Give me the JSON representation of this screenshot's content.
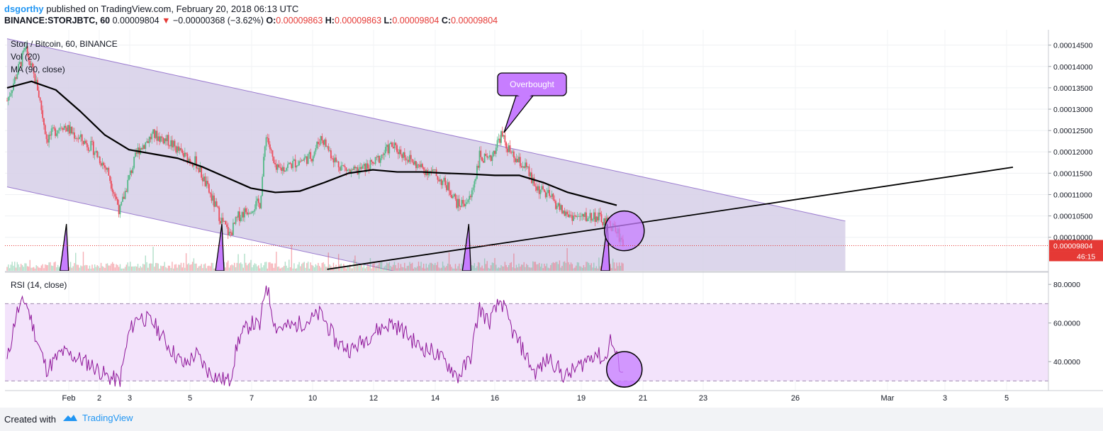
{
  "header": {
    "author": "dsgorthy",
    "published": "published on TradingView.com, February 20, 2018 06:13 UTC",
    "symbol": "BINANCE:STORJBTC, 60",
    "price": "0.00009804",
    "change_arrow": "▼",
    "change": "−0.00000368 (−3.62%)",
    "ohlc": [
      {
        "k": "O:",
        "v": "0.00009863"
      },
      {
        "k": "H:",
        "v": "0.00009863"
      },
      {
        "k": "L:",
        "v": "0.00009804"
      },
      {
        "k": "C:",
        "v": "0.00009804"
      }
    ]
  },
  "legend": {
    "title": "Storj / Bitcoin, 60, BINANCE",
    "vol": "Vol (20)",
    "ma": "MA (90, close)",
    "rsi": "RSI (14, close)"
  },
  "annotation": {
    "label": "Overbought"
  },
  "price_tag": {
    "value": "0.00009804",
    "countdown": "46:15"
  },
  "footer": {
    "created_with": "Created with",
    "brand": "TradingView"
  },
  "colors": {
    "up": "#53b987",
    "down": "#eb4d5c",
    "channel_fill": "#d6cfe8",
    "channel_line": "#9c7dd0",
    "ma": "#000000",
    "rsi_line": "#8e1599",
    "rsi_band": "#f3e3fb",
    "callout": "#c77dff",
    "accent": "#2196f3"
  },
  "chart_data": {
    "type": "candlestick",
    "title": "Storj / Bitcoin, 60, BINANCE",
    "price_axis": {
      "ticks": [
        "0.00014500",
        "0.00014000",
        "0.00013500",
        "0.00013000",
        "0.00012500",
        "0.00012000",
        "0.00011500",
        "0.00011000",
        "0.00010500",
        "0.00010000"
      ],
      "range": [
        9.25e-05,
        0.000148
      ]
    },
    "rsi_axis": {
      "ticks": [
        "80.0000",
        "60.0000",
        "40.0000"
      ],
      "range": [
        25,
        83
      ],
      "band": [
        30,
        70
      ]
    },
    "time_axis": [
      "Feb",
      "2",
      "3",
      "5",
      "7",
      "10",
      "12",
      "14",
      "16",
      "19",
      "21",
      "23",
      "26",
      "Mar",
      "3",
      "5"
    ],
    "price_waypoints": [
      {
        "d": 0.0,
        "p": 0.000132
      },
      {
        "d": 0.3,
        "p": 0.000138
      },
      {
        "d": 0.6,
        "p": 0.000144
      },
      {
        "d": 1.0,
        "p": 0.000135
      },
      {
        "d": 1.3,
        "p": 0.000123
      },
      {
        "d": 1.8,
        "p": 0.0001265
      },
      {
        "d": 2.3,
        "p": 0.0001235
      },
      {
        "d": 2.8,
        "p": 0.000121
      },
      {
        "d": 3.3,
        "p": 0.0001155
      },
      {
        "d": 3.7,
        "p": 0.000106
      },
      {
        "d": 4.0,
        "p": 0.000114
      },
      {
        "d": 4.3,
        "p": 0.0001205
      },
      {
        "d": 4.8,
        "p": 0.000124
      },
      {
        "d": 5.3,
        "p": 0.0001225
      },
      {
        "d": 5.8,
        "p": 0.000119
      },
      {
        "d": 6.2,
        "p": 0.0001175
      },
      {
        "d": 6.6,
        "p": 0.000111
      },
      {
        "d": 7.0,
        "p": 0.0001045
      },
      {
        "d": 7.3,
        "p": 0.0001005
      },
      {
        "d": 7.6,
        "p": 0.000105
      },
      {
        "d": 8.0,
        "p": 0.000107
      },
      {
        "d": 8.3,
        "p": 0.000108
      },
      {
        "d": 8.5,
        "p": 0.0001245
      },
      {
        "d": 8.8,
        "p": 0.0001155
      },
      {
        "d": 9.3,
        "p": 0.000117
      },
      {
        "d": 10.0,
        "p": 0.000119
      },
      {
        "d": 10.3,
        "p": 0.0001235
      },
      {
        "d": 10.8,
        "p": 0.0001175
      },
      {
        "d": 11.3,
        "p": 0.000115
      },
      {
        "d": 12.0,
        "p": 0.000117
      },
      {
        "d": 12.6,
        "p": 0.0001215
      },
      {
        "d": 13.0,
        "p": 0.0001195
      },
      {
        "d": 13.5,
        "p": 0.0001165
      },
      {
        "d": 14.0,
        "p": 0.000115
      },
      {
        "d": 14.5,
        "p": 0.0001115
      },
      {
        "d": 14.8,
        "p": 0.0001075
      },
      {
        "d": 15.2,
        "p": 0.000109
      },
      {
        "d": 15.5,
        "p": 0.000119
      },
      {
        "d": 15.8,
        "p": 0.0001175
      },
      {
        "d": 16.2,
        "p": 0.000124
      },
      {
        "d": 16.6,
        "p": 0.0001185
      },
      {
        "d": 17.0,
        "p": 0.0001165
      },
      {
        "d": 17.3,
        "p": 0.000112
      },
      {
        "d": 17.8,
        "p": 0.0001095
      },
      {
        "d": 18.3,
        "p": 0.0001055
      },
      {
        "d": 18.8,
        "p": 0.0001045
      },
      {
        "d": 19.3,
        "p": 0.000105
      },
      {
        "d": 19.6,
        "p": 0.0001035
      },
      {
        "d": 19.8,
        "p": 0.000103
      },
      {
        "d": 20.0,
        "p": 0.0001015
      },
      {
        "d": 20.25,
        "p": 9.8e-05
      }
    ],
    "ma_90": [
      {
        "d": 0.0,
        "p": 0.000135
      },
      {
        "d": 0.8,
        "p": 0.0001365
      },
      {
        "d": 1.6,
        "p": 0.0001345
      },
      {
        "d": 2.4,
        "p": 0.0001295
      },
      {
        "d": 3.2,
        "p": 0.000124
      },
      {
        "d": 4.0,
        "p": 0.0001205
      },
      {
        "d": 4.8,
        "p": 0.0001195
      },
      {
        "d": 5.6,
        "p": 0.0001185
      },
      {
        "d": 6.4,
        "p": 0.0001165
      },
      {
        "d": 7.2,
        "p": 0.000114
      },
      {
        "d": 8.0,
        "p": 0.0001115
      },
      {
        "d": 8.8,
        "p": 0.0001105
      },
      {
        "d": 9.6,
        "p": 0.0001108
      },
      {
        "d": 10.4,
        "p": 0.0001128
      },
      {
        "d": 11.2,
        "p": 0.000115
      },
      {
        "d": 12.0,
        "p": 0.0001158
      },
      {
        "d": 12.8,
        "p": 0.0001153
      },
      {
        "d": 13.6,
        "p": 0.0001153
      },
      {
        "d": 14.4,
        "p": 0.000115
      },
      {
        "d": 15.2,
        "p": 0.0001148
      },
      {
        "d": 16.0,
        "p": 0.0001145
      },
      {
        "d": 16.8,
        "p": 0.0001145
      },
      {
        "d": 17.6,
        "p": 0.0001128
      },
      {
        "d": 18.4,
        "p": 0.0001105
      },
      {
        "d": 19.2,
        "p": 0.000109
      },
      {
        "d": 20.0,
        "p": 0.0001075
      }
    ],
    "rsi_waypoints": [
      {
        "d": 0.0,
        "v": 40
      },
      {
        "d": 0.3,
        "v": 65
      },
      {
        "d": 0.6,
        "v": 72
      },
      {
        "d": 1.0,
        "v": 50
      },
      {
        "d": 1.3,
        "v": 36
      },
      {
        "d": 1.8,
        "v": 45
      },
      {
        "d": 2.3,
        "v": 42
      },
      {
        "d": 2.8,
        "v": 38
      },
      {
        "d": 3.3,
        "v": 32
      },
      {
        "d": 3.7,
        "v": 30
      },
      {
        "d": 4.0,
        "v": 55
      },
      {
        "d": 4.3,
        "v": 64
      },
      {
        "d": 4.8,
        "v": 60
      },
      {
        "d": 5.3,
        "v": 48
      },
      {
        "d": 5.8,
        "v": 38
      },
      {
        "d": 6.2,
        "v": 44
      },
      {
        "d": 6.6,
        "v": 35
      },
      {
        "d": 7.0,
        "v": 31
      },
      {
        "d": 7.3,
        "v": 30
      },
      {
        "d": 7.6,
        "v": 52
      },
      {
        "d": 8.0,
        "v": 60
      },
      {
        "d": 8.3,
        "v": 58
      },
      {
        "d": 8.5,
        "v": 81
      },
      {
        "d": 8.8,
        "v": 58
      },
      {
        "d": 9.3,
        "v": 58
      },
      {
        "d": 10.0,
        "v": 62
      },
      {
        "d": 10.3,
        "v": 65
      },
      {
        "d": 10.8,
        "v": 50
      },
      {
        "d": 11.3,
        "v": 46
      },
      {
        "d": 12.0,
        "v": 55
      },
      {
        "d": 12.6,
        "v": 60
      },
      {
        "d": 13.0,
        "v": 56
      },
      {
        "d": 13.5,
        "v": 48
      },
      {
        "d": 14.0,
        "v": 45
      },
      {
        "d": 14.5,
        "v": 38
      },
      {
        "d": 14.8,
        "v": 32
      },
      {
        "d": 15.2,
        "v": 42
      },
      {
        "d": 15.5,
        "v": 68
      },
      {
        "d": 15.8,
        "v": 60
      },
      {
        "d": 16.2,
        "v": 72
      },
      {
        "d": 16.6,
        "v": 55
      },
      {
        "d": 17.0,
        "v": 44
      },
      {
        "d": 17.3,
        "v": 34
      },
      {
        "d": 17.8,
        "v": 42
      },
      {
        "d": 18.3,
        "v": 32
      },
      {
        "d": 18.8,
        "v": 38
      },
      {
        "d": 19.3,
        "v": 45
      },
      {
        "d": 19.6,
        "v": 40
      },
      {
        "d": 19.8,
        "v": 52
      },
      {
        "d": 20.0,
        "v": 42
      },
      {
        "d": 20.25,
        "v": 33
      }
    ],
    "channel": {
      "upper": [
        {
          "d": 0.0,
          "p": 0.0001465
        },
        {
          "d": 27.5,
          "p": 0.0001038
        }
      ],
      "lower": [
        {
          "d": 0.0,
          "p": 0.0001118
        },
        {
          "d": 27.5,
          "p": 6.91e-05
        }
      ]
    },
    "trendline": [
      {
        "d": 10.5,
        "p": 9.25e-05
      },
      {
        "d": 33.0,
        "p": 0.0001164
      }
    ],
    "highlight_circles": [
      {
        "pane": "price",
        "d": 20.25,
        "p": 0.0001015
      },
      {
        "pane": "rsi",
        "d": 20.25,
        "v": 36
      }
    ],
    "callout_point": {
      "d": 16.3,
      "p": 0.0001245
    },
    "spikes_at_days": [
      1.9,
      7.0,
      15.1,
      19.65
    ]
  }
}
